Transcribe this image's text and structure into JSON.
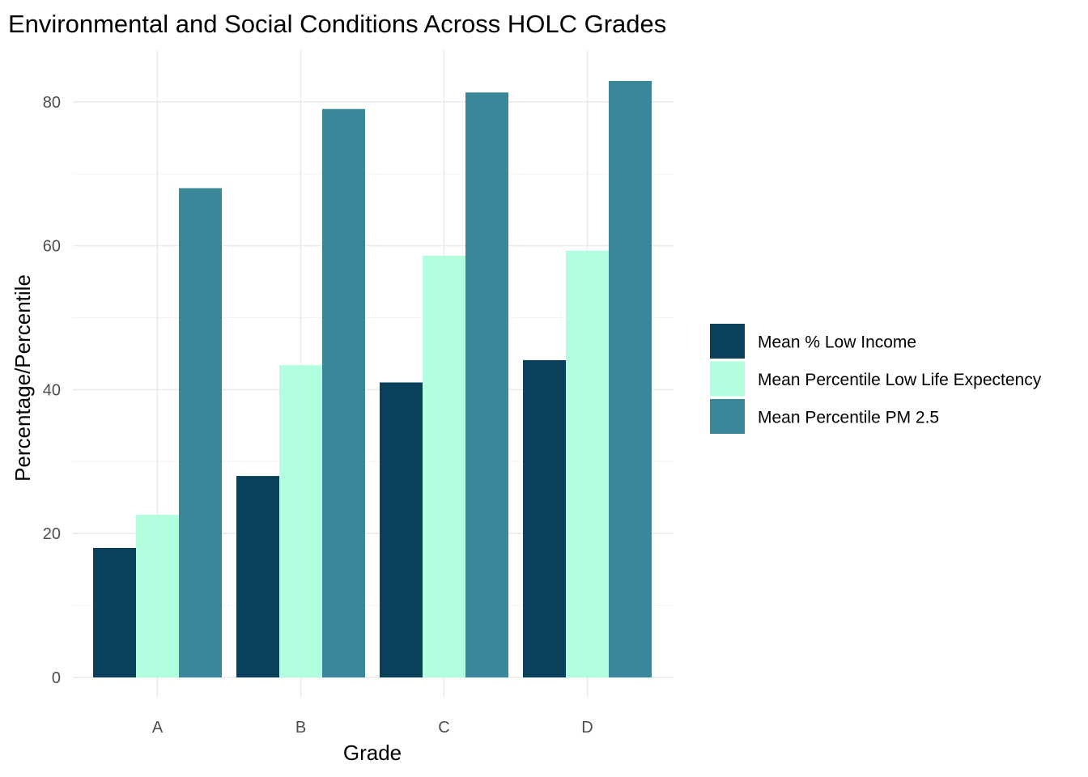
{
  "chart_data": {
    "type": "bar",
    "title": "Environmental and Social Conditions Across HOLC Grades",
    "xlabel": "Grade",
    "ylabel": "Percentage/Percentile",
    "categories": [
      "A",
      "B",
      "C",
      "D"
    ],
    "series": [
      {
        "name": "Mean % Low Income",
        "color": "#0a4059",
        "values": [
          18,
          28,
          41,
          44.1
        ]
      },
      {
        "name": "Mean Percentile Low Life Expectency",
        "color": "#b2ffe0",
        "values": [
          22.6,
          43.4,
          58.6,
          59.3
        ]
      },
      {
        "name": "Mean Percentile PM 2.5",
        "color": "#3a8799",
        "values": [
          68,
          79,
          81.3,
          82.9
        ]
      }
    ],
    "ylim": [
      0,
      87
    ],
    "yticks": [
      0,
      20,
      40,
      60,
      80
    ],
    "grid": true,
    "legend_position": "right"
  }
}
